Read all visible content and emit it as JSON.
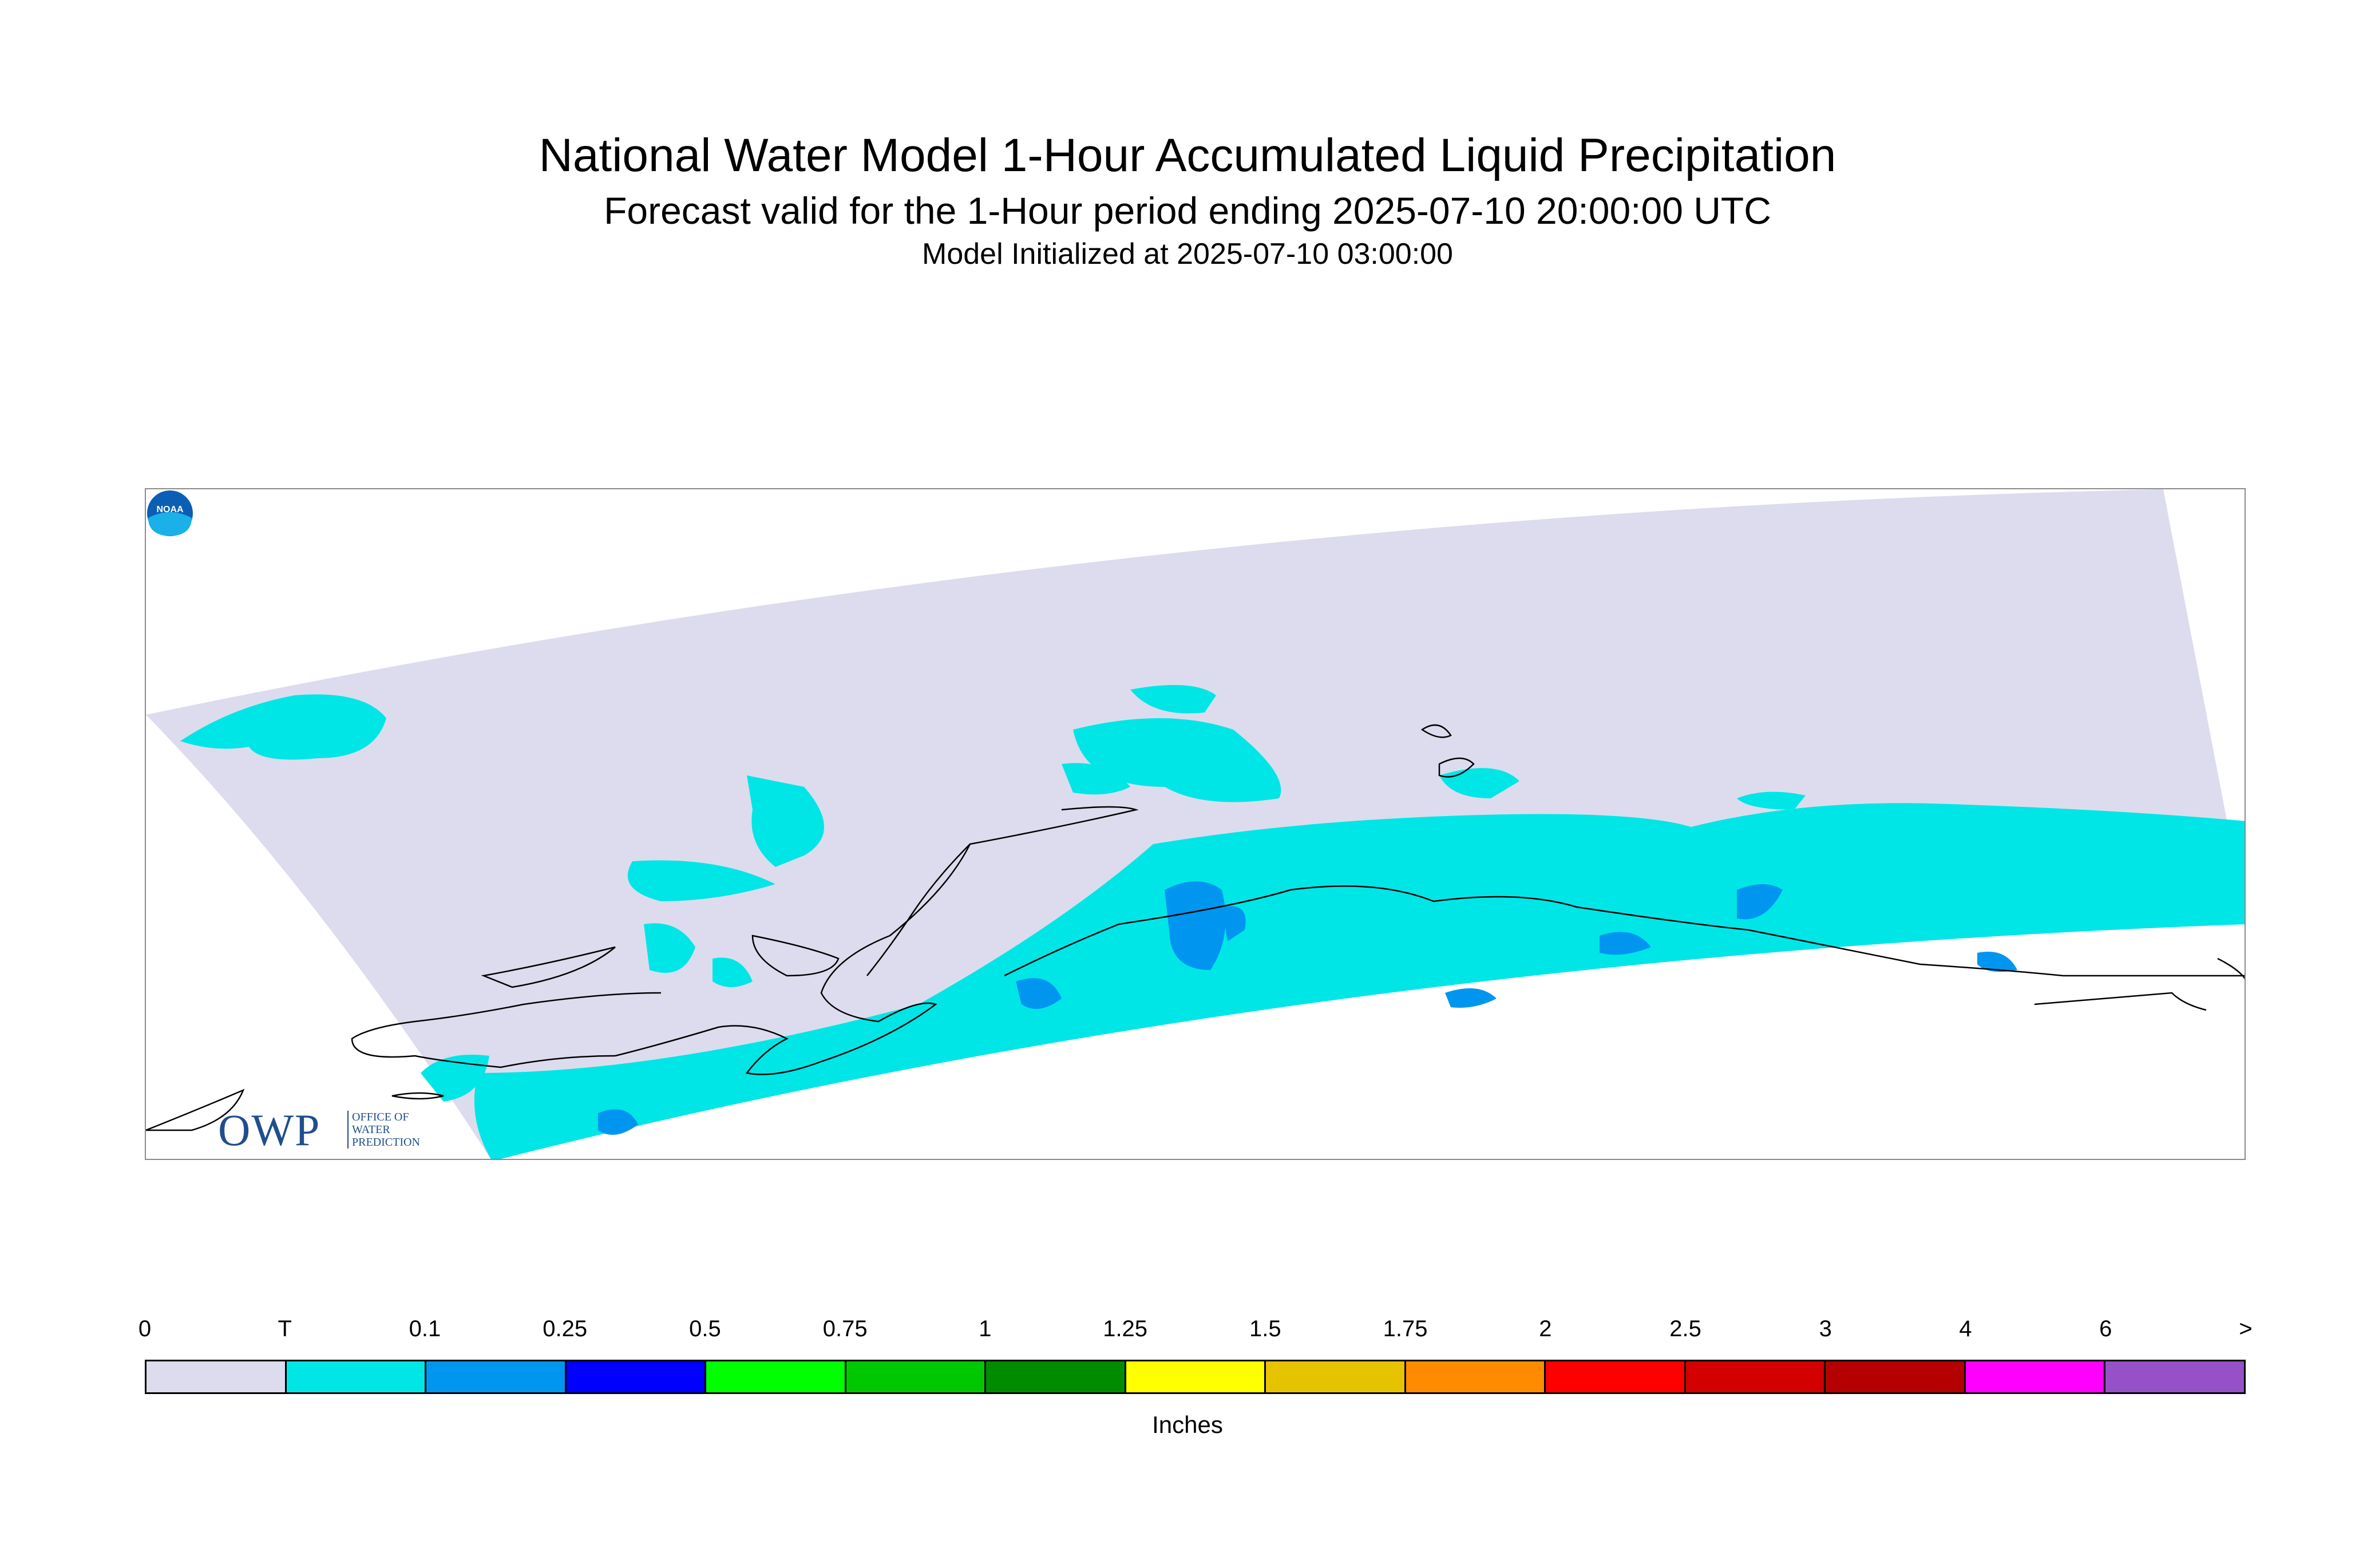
{
  "title": "National Water Model 1-Hour Accumulated Liquid Precipitation",
  "subtitle": "Forecast valid for the 1-Hour period ending 2025-07-10 20:00:00 UTC",
  "init_line": "Model Initialized at 2025-07-10 03:00:00",
  "logos": {
    "owp_text": "OWP",
    "owp_lines": [
      "OFFICE OF",
      "WATER",
      "PREDICTION"
    ],
    "noaa_text": "NOAA"
  },
  "legend": {
    "tick_labels": [
      "0",
      "T",
      "0.1",
      "0.25",
      "0.5",
      "0.75",
      "1",
      "1.25",
      "1.5",
      "1.75",
      "2",
      "2.5",
      "3",
      "4",
      "6",
      ">"
    ],
    "colors": [
      "#dcdcee",
      "#00e6e6",
      "#0096f0",
      "#0000ff",
      "#00ff00",
      "#00c800",
      "#008c00",
      "#ffff00",
      "#e6c300",
      "#ff8c00",
      "#ff0000",
      "#d20000",
      "#b40000",
      "#ff00ff",
      "#9650c8"
    ],
    "units": "Inches"
  },
  "map_colors": {
    "domain": "#dcdcee",
    "trace": "#00e6e6",
    "light": "#0096f0",
    "coast": "#000000"
  }
}
